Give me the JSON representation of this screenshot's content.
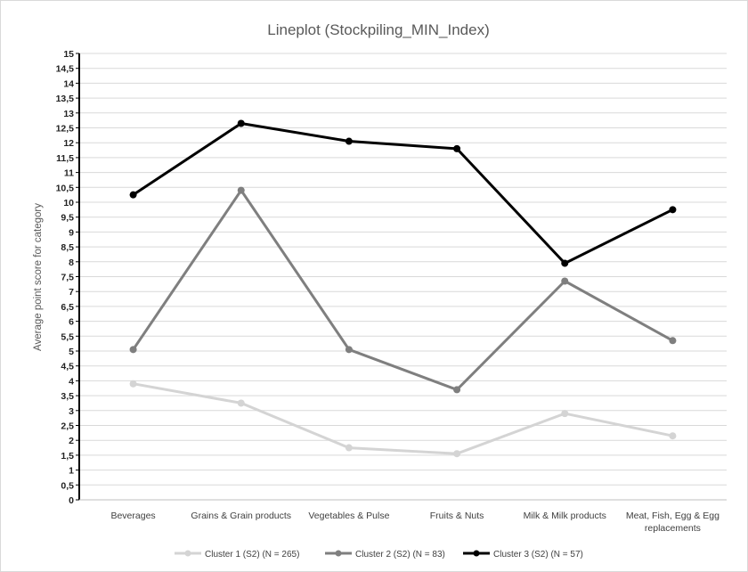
{
  "chart_data": {
    "type": "line",
    "title": "Lineplot (Stockpiling_MIN_Index)",
    "xlabel": "",
    "ylabel": "Average point score for category",
    "ylim": [
      0,
      15
    ],
    "ytick_labels": [
      "0",
      "0,5",
      "1",
      "1,5",
      "2",
      "2,5",
      "3",
      "3,5",
      "4",
      "4,5",
      "5",
      "5,5",
      "6",
      "6,5",
      "7",
      "7,5",
      "8",
      "8,5",
      "9",
      "9,5",
      "10",
      "10,5",
      "11",
      "11,5",
      "12",
      "12,5",
      "13",
      "13,5",
      "14",
      "14,5",
      "15"
    ],
    "categories": [
      [
        "Beverages"
      ],
      [
        "Grains & Grain products"
      ],
      [
        "Vegetables & Pulse"
      ],
      [
        "Fruits & Nuts"
      ],
      [
        "Milk & Milk products"
      ],
      [
        "Meat, Fish, Egg & Egg",
        "replacements"
      ]
    ],
    "grid": true,
    "legend_position": "bottom",
    "series": [
      {
        "name": "Cluster 1 (S2) (N = 265)",
        "color": "#d4d4d4",
        "values": [
          3.9,
          3.25,
          1.75,
          1.55,
          2.9,
          2.15
        ]
      },
      {
        "name": "Cluster 2 (S2) (N = 83)",
        "color": "#7f7f7f",
        "values": [
          5.05,
          10.4,
          5.05,
          3.7,
          7.35,
          5.35
        ]
      },
      {
        "name": "Cluster 3 (S2) (N = 57)",
        "color": "#000000",
        "values": [
          10.25,
          12.65,
          12.05,
          11.8,
          7.95,
          9.75
        ]
      }
    ]
  }
}
